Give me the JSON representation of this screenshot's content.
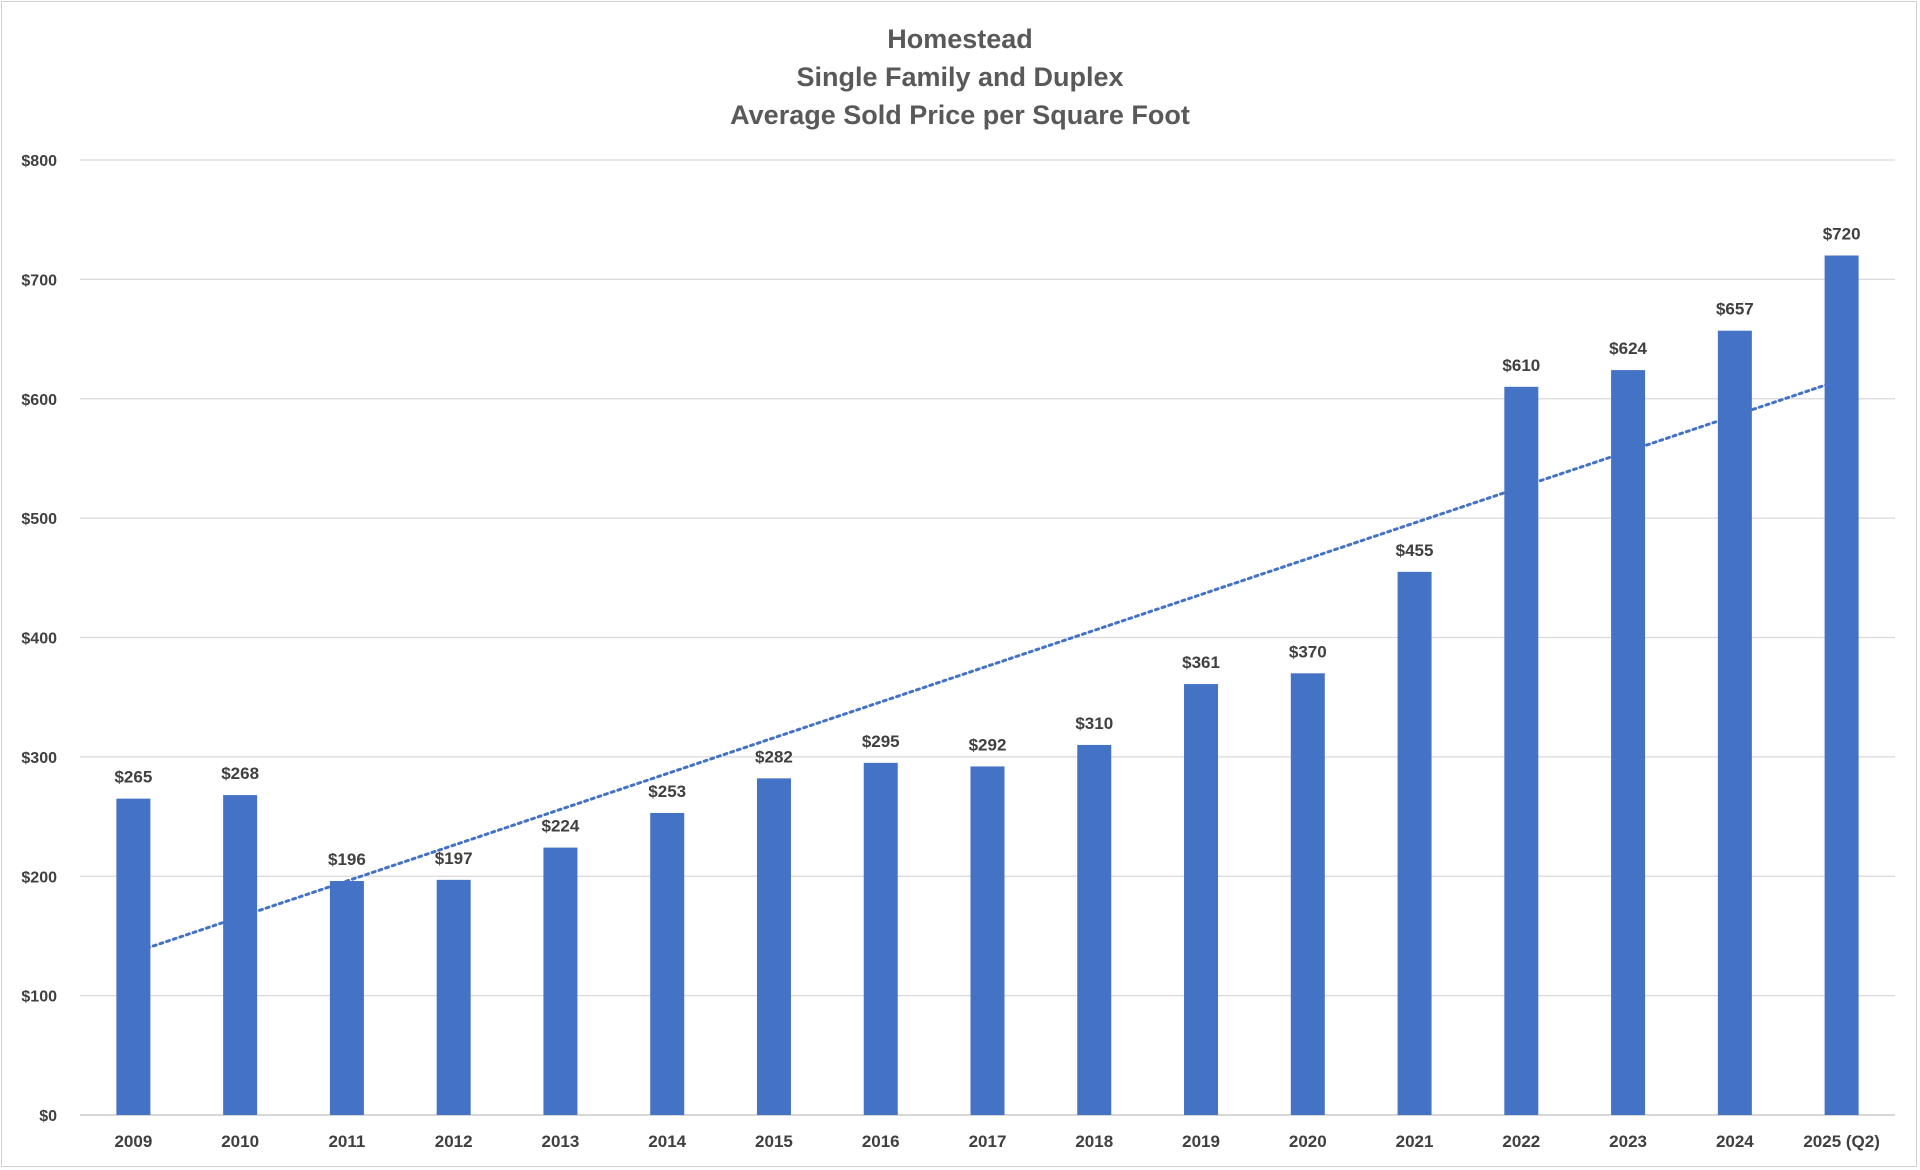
{
  "chart_data": {
    "type": "bar",
    "title": [
      "Homestead",
      "Single Family and Duplex",
      "Average Sold Price per Square Foot"
    ],
    "xlabel": "",
    "ylabel": "",
    "categories": [
      "2009",
      "2010",
      "2011",
      "2012",
      "2013",
      "2014",
      "2015",
      "2016",
      "2017",
      "2018",
      "2019",
      "2020",
      "2021",
      "2022",
      "2023",
      "2024",
      "2025 (Q2)"
    ],
    "values": [
      265,
      268,
      196,
      197,
      224,
      253,
      282,
      295,
      292,
      310,
      361,
      370,
      455,
      610,
      624,
      657,
      720
    ],
    "data_labels": [
      "$265",
      "$268",
      "$196",
      "$197",
      "$224",
      "$253",
      "$282",
      "$295",
      "$292",
      "$310",
      "$361",
      "$370",
      "$455",
      "$610",
      "$624",
      "$657",
      "$720"
    ],
    "ylim": [
      0,
      800
    ],
    "yticks": [
      0,
      100,
      200,
      300,
      400,
      500,
      600,
      700,
      800
    ],
    "ytick_labels": [
      "$0",
      "$100",
      "$200",
      "$300",
      "$400",
      "$500",
      "$600",
      "$700",
      "$800"
    ],
    "grid": true,
    "legend": "none",
    "trendline": {
      "type": "linear",
      "style": "dotted",
      "start": 136,
      "end": 616
    },
    "colors": {
      "bar": "#4472C4",
      "trendline": "#4472C4",
      "grid": "#d9d9d9",
      "text": "#404040",
      "title": "#595959"
    }
  }
}
